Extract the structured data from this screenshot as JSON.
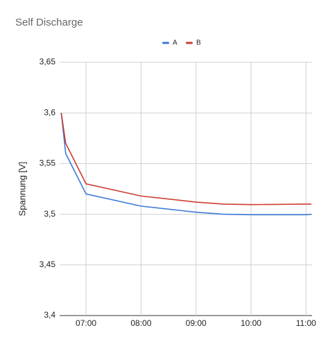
{
  "chart_data": {
    "type": "line",
    "title": "Self Discharge",
    "y_label": "Spannung [V]",
    "x": [
      6.55,
      6.63,
      7,
      8,
      9,
      9.5,
      10,
      11,
      11.1
    ],
    "series": [
      {
        "name": "A",
        "color": "#3c78d8",
        "values": [
          3.6,
          3.56,
          3.52,
          3.508,
          3.502,
          3.5,
          3.4995,
          3.4995,
          3.5
        ]
      },
      {
        "name": "B",
        "color": "#cc3b2f",
        "values": [
          3.6,
          3.57,
          3.53,
          3.518,
          3.512,
          3.51,
          3.5095,
          3.51,
          3.51
        ]
      }
    ],
    "xlim": [
      6.52,
      11.11
    ],
    "xticks": [
      {
        "value": 7,
        "label": "07:00"
      },
      {
        "value": 8,
        "label": "08:00"
      },
      {
        "value": 9,
        "label": "09:00"
      },
      {
        "value": 10,
        "label": "10:00"
      },
      {
        "value": 11,
        "label": "11:00"
      }
    ],
    "ylim": [
      3.4,
      3.65
    ],
    "yticks": [
      {
        "value": 3.4,
        "label": "3,4"
      },
      {
        "value": 3.45,
        "label": "3,45"
      },
      {
        "value": 3.5,
        "label": "3,5"
      },
      {
        "value": 3.55,
        "label": "3,55"
      },
      {
        "value": 3.6,
        "label": "3,6"
      },
      {
        "value": 3.65,
        "label": "3,65"
      }
    ],
    "grid": true,
    "legend": "top"
  }
}
